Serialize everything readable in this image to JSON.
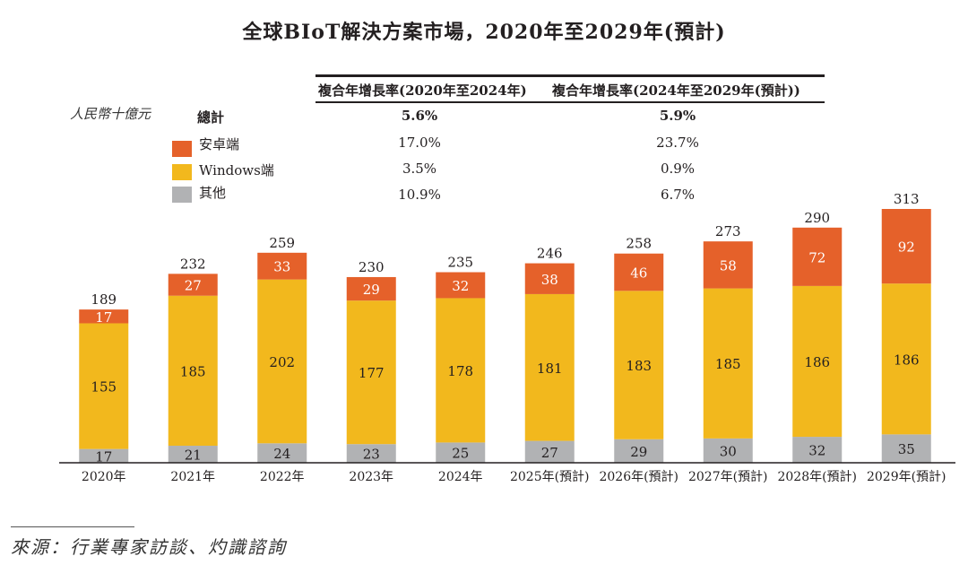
{
  "title": "全球BIoT解決方案市場，2020年至2029年(預計)",
  "unit_label": "人民幣十億元",
  "cagr_table": {
    "headers": [
      "複合年增長率(2020年至2024年)",
      "複合年增長率(2024年至2029年(預計))"
    ],
    "rows": [
      {
        "label": "總計",
        "values": [
          "5.6%",
          "5.9%"
        ],
        "bold": true
      },
      {
        "label": "安卓端",
        "values": [
          "17.0%",
          "23.7%"
        ],
        "color": "#e5612a"
      },
      {
        "label": "Windows端",
        "values": [
          "3.5%",
          "0.9%"
        ],
        "color": "#f2b81d"
      },
      {
        "label": "其他",
        "values": [
          "10.9%",
          "6.7%"
        ],
        "color": "#b1b2b4"
      }
    ]
  },
  "source": "來源：行業專家訪談、灼識諮詢",
  "chart_data": {
    "type": "bar",
    "stacked": true,
    "title": "全球BIoT解決方案市場，2020年至2029年(預計)",
    "xlabel": "",
    "ylabel": "人民幣十億元",
    "categories": [
      "2020年",
      "2021年",
      "2022年",
      "2023年",
      "2024年",
      "2025年(預計)",
      "2026年(預計)",
      "2027年(預計)",
      "2028年(預計)",
      "2029年(預計)"
    ],
    "series": [
      {
        "name": "其他",
        "color": "#b1b2b4",
        "values": [
          17,
          21,
          24,
          23,
          25,
          27,
          29,
          30,
          32,
          35
        ]
      },
      {
        "name": "Windows端",
        "color": "#f2b81d",
        "values": [
          155,
          185,
          202,
          177,
          178,
          181,
          183,
          185,
          186,
          186
        ]
      },
      {
        "name": "安卓端",
        "color": "#e5612a",
        "values": [
          17,
          27,
          33,
          29,
          32,
          38,
          46,
          58,
          72,
          92
        ]
      }
    ],
    "totals": [
      189,
      232,
      259,
      230,
      235,
      246,
      258,
      273,
      290,
      313
    ],
    "ylim": [
      0,
      313
    ],
    "grid": false,
    "legend": "top-left"
  }
}
